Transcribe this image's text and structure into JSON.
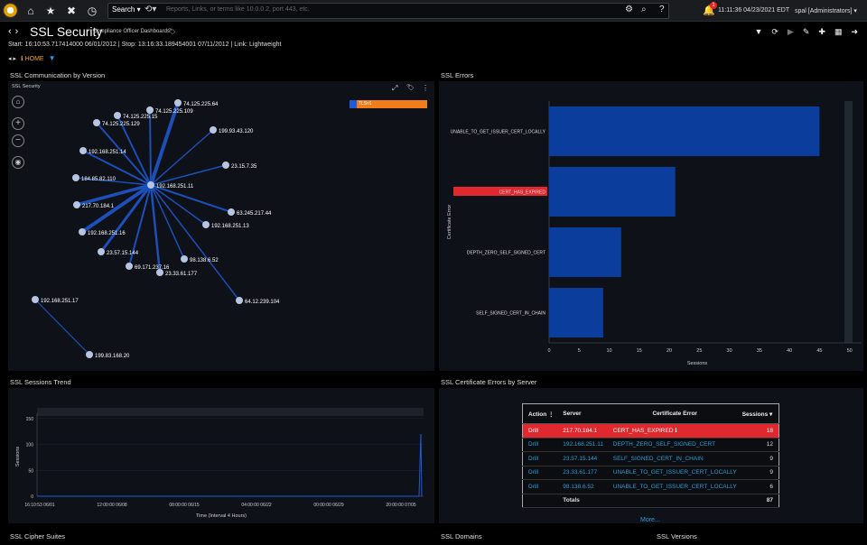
{
  "topbar": {
    "search_label": "Search ▾",
    "search_placeholder": "Reports, Links, or terms like 10.0.0.2, port 443, etc.",
    "notification_count": "1",
    "clock": "11:11:36 04/23/2021 EDT",
    "user": "spal [Administrators] ▾"
  },
  "header": {
    "title": "SSL Security",
    "subtitle": "Compliance Officer Dashboards",
    "range": "Start: 16:10:53.717414000 06/01/2012 | Stop: 13:16:33.189454001 07/11/2012 | Link: Lightweight",
    "breadcrumb_home": "HOME"
  },
  "panels": {
    "communication": {
      "title": "SSL Communication by Version",
      "inner_title": "SSL Security",
      "legend": "TLSv1"
    },
    "errors": {
      "title": "SSL Errors"
    },
    "trend": {
      "title": "SSL Sessions Trend"
    },
    "cert_errors": {
      "title": "SSL Certificate Errors by Server"
    },
    "cipher": {
      "title": "SSL Cipher Suites"
    },
    "domains": {
      "title": "SSL Domains"
    },
    "versions": {
      "title": "SSL Versions"
    }
  },
  "network": {
    "center": "192.168.251.11",
    "nodes": [
      "74.125.225.64",
      "74.125.225.109",
      "74.125.225.15",
      "74.125.225.129",
      "199.93.43.120",
      "192.168.251.14",
      "23.15.7.35",
      "184.85.82.110",
      "63.245.217.44",
      "217.70.184.1",
      "192.168.251.13",
      "192.168.251.16",
      "23.57.15.144",
      "98.138.6.52",
      "69.171.237.16",
      "23.33.61.177",
      "64.12.239.104",
      "192.168.251.17",
      "199.83.168.20"
    ]
  },
  "chart_data": [
    {
      "type": "bar",
      "orientation": "horizontal",
      "categories": [
        "UNABLE_TO_GET_ISSUER_CERT_LOCALLY",
        "CERT_HAS_EXPIRED",
        "DEPTH_ZERO_SELF_SIGNED_CERT",
        "SELF_SIGNED_CERT_IN_CHAIN"
      ],
      "values": [
        45,
        21,
        12,
        9
      ],
      "xlabel": "Sessions",
      "ylabel": "Certificate Error",
      "xlim": [
        0,
        52
      ],
      "xticks": [
        0,
        5,
        10,
        15,
        20,
        25,
        30,
        35,
        40,
        45,
        50
      ],
      "highlight": "CERT_HAS_EXPIRED",
      "colors": {
        "bar": "#0a3d9c",
        "highlight": "#e0282e"
      }
    },
    {
      "type": "line",
      "x": [
        "16:10:53 06/01",
        "12:00:00 06/08",
        "08:00:00 06/15",
        "04:00:00 06/22",
        "00:00:00 06/29",
        "20:00:00 07/05"
      ],
      "ylabel": "Sessions",
      "xlabel": "Time (Interval 4 Hours)",
      "yticks": [
        0,
        50,
        100,
        150
      ],
      "ylim": [
        0,
        160
      ],
      "spike_value": 120,
      "color": "#1e5bd8"
    }
  ],
  "table": {
    "headers": [
      "Action ⋮",
      "Server",
      "Certificate Error",
      "Sessions ▾"
    ],
    "rows": [
      {
        "action": "Drill",
        "server": "217.70.184.1",
        "error": "CERT_HAS_EXPIRED  ℹ",
        "sessions": "18"
      },
      {
        "action": "Drill",
        "server": "192.168.251.11",
        "error": "DEPTH_ZERO_SELF_SIGNED_CERT",
        "sessions": "12"
      },
      {
        "action": "Drill",
        "server": "23.57.15.144",
        "error": "SELF_SIGNED_CERT_IN_CHAIN",
        "sessions": "9"
      },
      {
        "action": "Drill",
        "server": "23.33.61.177",
        "error": "UNABLE_TO_GET_ISSUER_CERT_LOCALLY",
        "sessions": "9"
      },
      {
        "action": "Drill",
        "server": "98.138.6.52",
        "error": "UNABLE_TO_GET_ISSUER_CERT_LOCALLY",
        "sessions": "6"
      }
    ],
    "total_label": "Totals",
    "total_value": "87",
    "more": "More..."
  }
}
